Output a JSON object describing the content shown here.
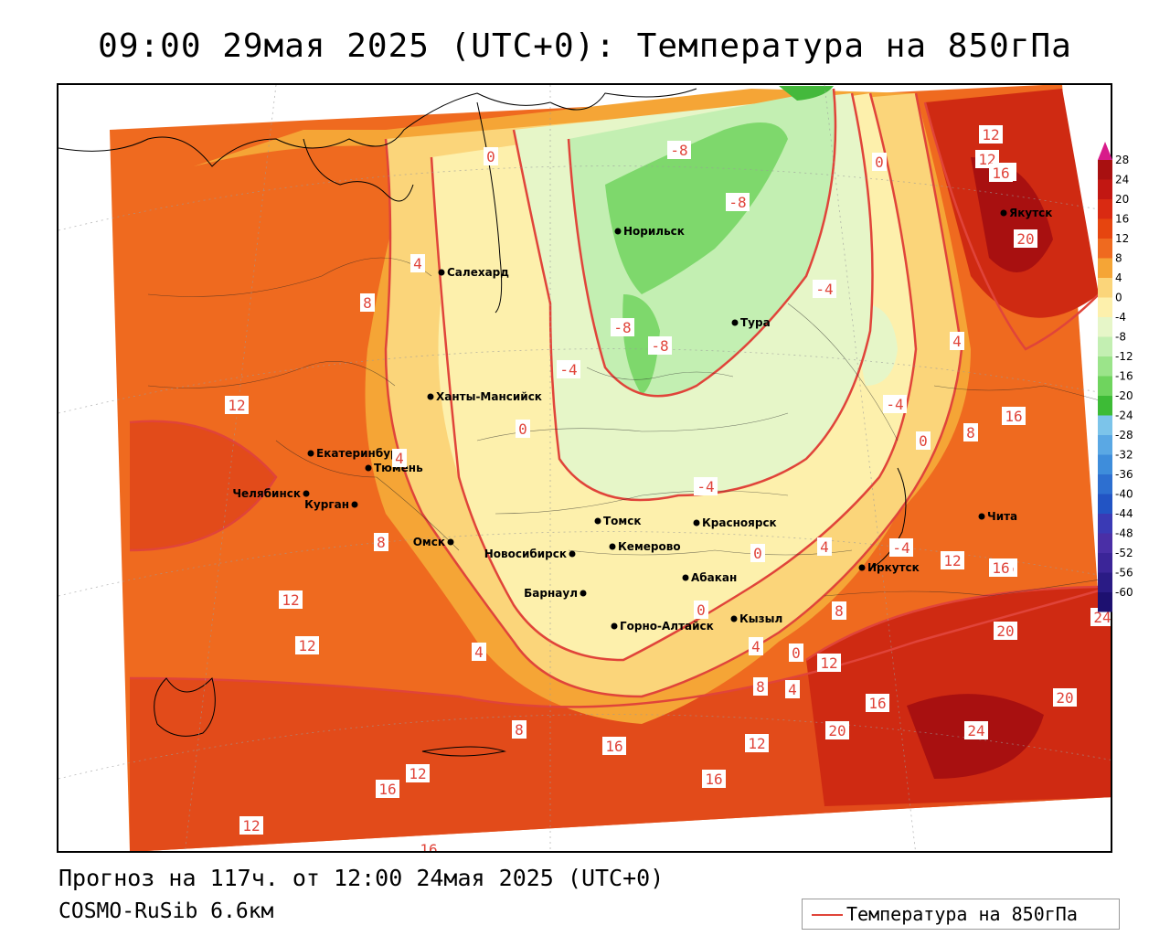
{
  "title": "09:00 29мая 2025 (UTC+0): Температура на 850гПа",
  "forecast": "Прогноз на 117ч. от 12:00 24мая 2025 (UTC+0)",
  "model": "COSMO-RuSib 6.6км",
  "legend": {
    "label": "Температура на 850гПа",
    "color": "#e0443a"
  },
  "colorbar": {
    "ticks": [
      "28",
      "24",
      "20",
      "16",
      "12",
      "8",
      "4",
      "0",
      "-4",
      "-8",
      "-12",
      "-16",
      "-20",
      "-24",
      "-28",
      "-32",
      "-36",
      "-40",
      "-44",
      "-48",
      "-52",
      "-56",
      "-60"
    ]
  },
  "cities": [
    {
      "name": "Салехард"
    },
    {
      "name": "Норильск"
    },
    {
      "name": "Якутск"
    },
    {
      "name": "Тура"
    },
    {
      "name": "Ханты-Мансийск"
    },
    {
      "name": "Екатеринбург"
    },
    {
      "name": "Тюмень"
    },
    {
      "name": "Челябинск"
    },
    {
      "name": "Курган"
    },
    {
      "name": "Омск"
    },
    {
      "name": "Томск"
    },
    {
      "name": "Красноярск"
    },
    {
      "name": "Новосибирск"
    },
    {
      "name": "Кемерово"
    },
    {
      "name": "Абакан"
    },
    {
      "name": "Барнаул"
    },
    {
      "name": "Горно-Алтайск"
    },
    {
      "name": "Кызыл"
    },
    {
      "name": "Иркутск"
    },
    {
      "name": "Чита"
    }
  ],
  "contour_labels": [
    "12",
    "12",
    "16",
    "20",
    "0",
    "-8",
    "-8",
    "-4",
    "-4",
    "0",
    "4",
    "8",
    "12",
    "16",
    "16",
    "16",
    "12",
    "16",
    "-4",
    "-8",
    "-8",
    "-4",
    "0",
    "4",
    "8",
    "12",
    "12",
    "4",
    "8",
    "4",
    "0",
    "-4",
    "0",
    "0",
    "4",
    "0",
    "4",
    "8",
    "4",
    "8",
    "12",
    "16",
    "20",
    "24",
    "20",
    "8",
    "12",
    "16",
    "16",
    "12",
    "16",
    "12",
    "16",
    "20",
    "24"
  ]
}
